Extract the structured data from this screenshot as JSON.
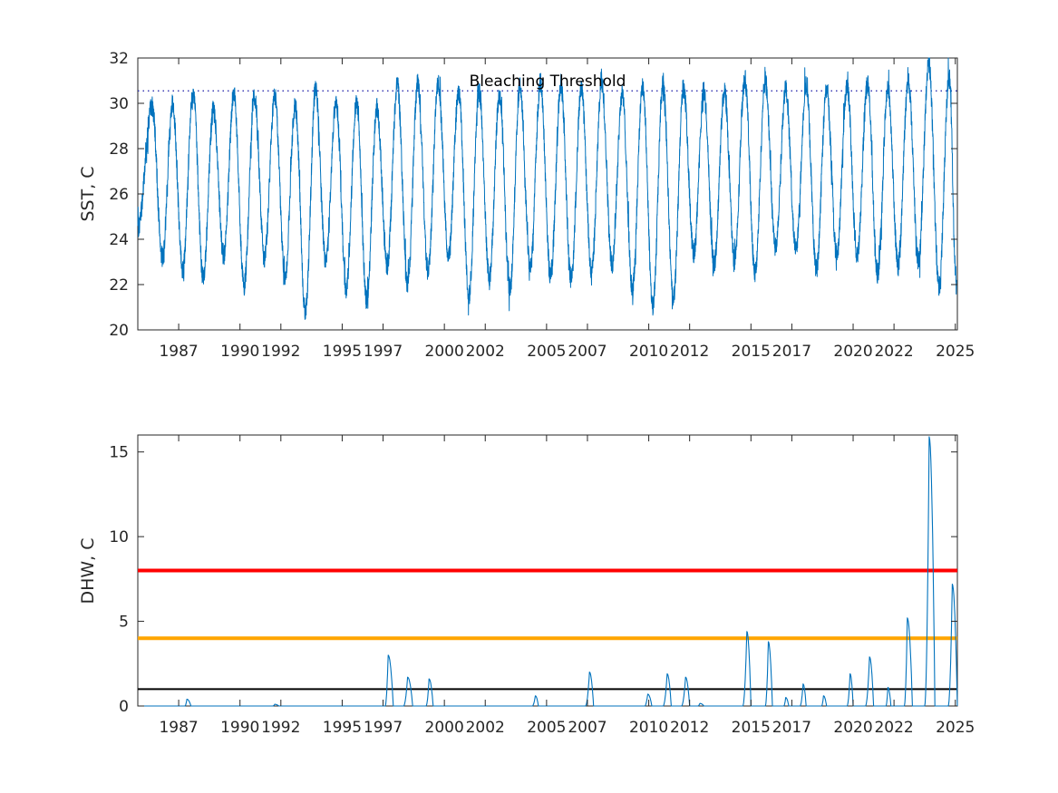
{
  "chart_data": [
    {
      "type": "line",
      "ylabel": "SST, C",
      "ylim": [
        20,
        32
      ],
      "yticks": [
        "20",
        "22",
        "24",
        "26",
        "28",
        "30",
        "32"
      ],
      "xlim": [
        1985.0,
        2025.1
      ],
      "xticks": [
        "1987",
        "1990",
        "1992",
        "1995",
        "1997",
        "2000",
        "2002",
        "2005",
        "2007",
        "2010",
        "2012",
        "2015",
        "2017",
        "2020",
        "2022",
        "2025"
      ],
      "grid": false,
      "threshold": {
        "label": "Bleaching Threshold",
        "value": 30.55,
        "style": "dotted"
      },
      "series": [
        {
          "color": "#0072BD",
          "seasonal_peaks": [
            {
              "x": 1985.7,
              "y": 29.9
            },
            {
              "x": 1986.7,
              "y": 30.0
            },
            {
              "x": 1987.7,
              "y": 30.6
            },
            {
              "x": 1988.7,
              "y": 29.7
            },
            {
              "x": 1989.7,
              "y": 30.4
            },
            {
              "x": 1990.7,
              "y": 30.3
            },
            {
              "x": 1991.7,
              "y": 30.3
            },
            {
              "x": 1992.7,
              "y": 29.9
            },
            {
              "x": 1993.7,
              "y": 30.6
            },
            {
              "x": 1994.7,
              "y": 30.1
            },
            {
              "x": 1995.7,
              "y": 30.1
            },
            {
              "x": 1996.7,
              "y": 29.8
            },
            {
              "x": 1997.7,
              "y": 30.8
            },
            {
              "x": 1998.7,
              "y": 30.9
            },
            {
              "x": 1999.7,
              "y": 30.9
            },
            {
              "x": 2000.7,
              "y": 30.5
            },
            {
              "x": 2001.7,
              "y": 30.5
            },
            {
              "x": 2002.7,
              "y": 30.4
            },
            {
              "x": 2003.7,
              "y": 30.7
            },
            {
              "x": 2004.7,
              "y": 30.9
            },
            {
              "x": 2005.7,
              "y": 30.8
            },
            {
              "x": 2006.7,
              "y": 30.6
            },
            {
              "x": 2007.7,
              "y": 30.9
            },
            {
              "x": 2008.7,
              "y": 30.4
            },
            {
              "x": 2009.7,
              "y": 30.8
            },
            {
              "x": 2010.7,
              "y": 30.9
            },
            {
              "x": 2011.7,
              "y": 30.7
            },
            {
              "x": 2012.7,
              "y": 30.5
            },
            {
              "x": 2013.7,
              "y": 30.5
            },
            {
              "x": 2014.7,
              "y": 31.1
            },
            {
              "x": 2015.7,
              "y": 31.0
            },
            {
              "x": 2016.7,
              "y": 30.6
            },
            {
              "x": 2017.7,
              "y": 30.8
            },
            {
              "x": 2018.7,
              "y": 30.6
            },
            {
              "x": 2019.7,
              "y": 30.8
            },
            {
              "x": 2020.7,
              "y": 30.9
            },
            {
              "x": 2021.7,
              "y": 30.7
            },
            {
              "x": 2022.7,
              "y": 31.0
            },
            {
              "x": 2023.7,
              "y": 31.8
            },
            {
              "x": 2024.7,
              "y": 31.2
            }
          ],
          "seasonal_troughs": [
            {
              "x": 1986.2,
              "y": 23.2
            },
            {
              "x": 1987.2,
              "y": 22.6
            },
            {
              "x": 1988.2,
              "y": 22.3
            },
            {
              "x": 1989.2,
              "y": 23.3
            },
            {
              "x": 1990.2,
              "y": 21.9
            },
            {
              "x": 1991.2,
              "y": 23.2
            },
            {
              "x": 1992.2,
              "y": 22.3
            },
            {
              "x": 1993.2,
              "y": 20.8
            },
            {
              "x": 1994.2,
              "y": 23.0
            },
            {
              "x": 1995.2,
              "y": 21.8
            },
            {
              "x": 1996.2,
              "y": 21.3
            },
            {
              "x": 1997.2,
              "y": 22.8
            },
            {
              "x": 1998.2,
              "y": 22.0
            },
            {
              "x": 1999.2,
              "y": 22.6
            },
            {
              "x": 2000.2,
              "y": 23.3
            },
            {
              "x": 2001.2,
              "y": 21.5
            },
            {
              "x": 2002.2,
              "y": 22.3
            },
            {
              "x": 2003.2,
              "y": 21.8
            },
            {
              "x": 2004.2,
              "y": 22.7
            },
            {
              "x": 2005.2,
              "y": 22.3
            },
            {
              "x": 2006.2,
              "y": 22.2
            },
            {
              "x": 2007.2,
              "y": 22.6
            },
            {
              "x": 2008.2,
              "y": 22.9
            },
            {
              "x": 2009.2,
              "y": 21.8
            },
            {
              "x": 2010.2,
              "y": 21.1
            },
            {
              "x": 2011.2,
              "y": 21.3
            },
            {
              "x": 2012.2,
              "y": 23.4
            },
            {
              "x": 2013.2,
              "y": 22.9
            },
            {
              "x": 2014.2,
              "y": 23.1
            },
            {
              "x": 2015.2,
              "y": 22.5
            },
            {
              "x": 2016.2,
              "y": 23.7
            },
            {
              "x": 2017.2,
              "y": 23.5
            },
            {
              "x": 2018.2,
              "y": 22.7
            },
            {
              "x": 2019.2,
              "y": 23.3
            },
            {
              "x": 2020.2,
              "y": 23.2
            },
            {
              "x": 2021.2,
              "y": 22.5
            },
            {
              "x": 2022.2,
              "y": 22.9
            },
            {
              "x": 2023.2,
              "y": 23.0
            },
            {
              "x": 2024.2,
              "y": 21.9
            },
            {
              "x": 2025.05,
              "y": 22.0
            }
          ]
        }
      ]
    },
    {
      "type": "line",
      "ylabel": "DHW, C",
      "ylim": [
        0,
        16
      ],
      "yticks": [
        "0",
        "5",
        "10",
        "15"
      ],
      "xlim": [
        1985.0,
        2025.1
      ],
      "xticks": [
        "1987",
        "1990",
        "1992",
        "1995",
        "1997",
        "2000",
        "2002",
        "2005",
        "2007",
        "2010",
        "2012",
        "2015",
        "2017",
        "2020",
        "2022",
        "2025"
      ],
      "grid": false,
      "reference_lines": [
        {
          "value": 1,
          "color": "#000000"
        },
        {
          "value": 4,
          "color": "#FFA500"
        },
        {
          "value": 8,
          "color": "#FF0000"
        }
      ],
      "series": [
        {
          "color": "#0072BD",
          "events": [
            {
              "start": 1987.3,
              "peak_x": 1987.4,
              "peak": 0.4,
              "end": 1987.6
            },
            {
              "start": 1991.6,
              "peak_x": 1991.7,
              "peak": 0.1,
              "end": 1991.9
            },
            {
              "start": 1997.1,
              "peak_x": 1997.25,
              "peak": 3.0,
              "end": 1997.5
            },
            {
              "start": 1998.0,
              "peak_x": 1998.2,
              "peak": 1.7,
              "end": 1998.45
            },
            {
              "start": 1999.1,
              "peak_x": 1999.25,
              "peak": 1.6,
              "end": 1999.45
            },
            {
              "start": 2004.3,
              "peak_x": 2004.45,
              "peak": 0.6,
              "end": 2004.6
            },
            {
              "start": 2006.9,
              "peak_x": 2007.1,
              "peak": 2.0,
              "end": 2007.3
            },
            {
              "start": 2009.8,
              "peak_x": 2009.95,
              "peak": 0.7,
              "end": 2010.15
            },
            {
              "start": 2010.7,
              "peak_x": 2010.9,
              "peak": 1.9,
              "end": 2011.1
            },
            {
              "start": 2011.6,
              "peak_x": 2011.8,
              "peak": 1.7,
              "end": 2012.0
            },
            {
              "start": 2012.4,
              "peak_x": 2012.5,
              "peak": 0.15,
              "end": 2012.7
            },
            {
              "start": 2014.6,
              "peak_x": 2014.8,
              "peak": 4.4,
              "end": 2015.0
            },
            {
              "start": 2015.7,
              "peak_x": 2015.85,
              "peak": 3.8,
              "end": 2016.05
            },
            {
              "start": 2016.6,
              "peak_x": 2016.7,
              "peak": 0.5,
              "end": 2016.85
            },
            {
              "start": 2017.4,
              "peak_x": 2017.55,
              "peak": 1.3,
              "end": 2017.7
            },
            {
              "start": 2018.45,
              "peak_x": 2018.55,
              "peak": 0.6,
              "end": 2018.7
            },
            {
              "start": 2019.7,
              "peak_x": 2019.85,
              "peak": 1.9,
              "end": 2020.0
            },
            {
              "start": 2020.6,
              "peak_x": 2020.8,
              "peak": 2.9,
              "end": 2021.0
            },
            {
              "start": 2021.6,
              "peak_x": 2021.7,
              "peak": 1.1,
              "end": 2021.85
            },
            {
              "start": 2022.5,
              "peak_x": 2022.65,
              "peak": 5.2,
              "end": 2022.9
            },
            {
              "start": 2023.5,
              "peak_x": 2023.72,
              "peak": 15.9,
              "end": 2024.0
            },
            {
              "start": 2024.65,
              "peak_x": 2024.85,
              "peak": 7.2,
              "end": 2025.1
            }
          ]
        }
      ]
    }
  ]
}
